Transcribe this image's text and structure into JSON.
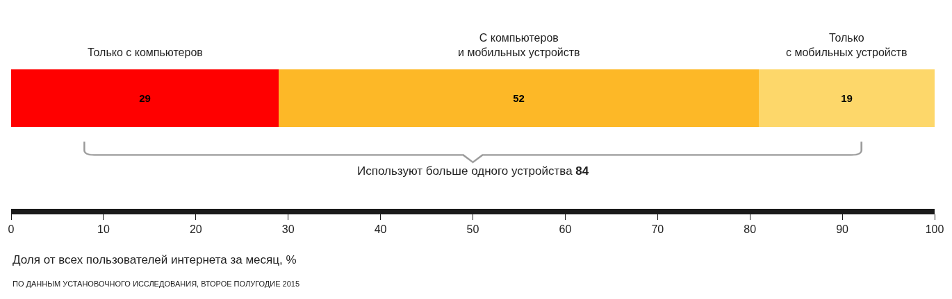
{
  "chart_data": {
    "type": "bar",
    "orientation": "horizontal",
    "stacked": true,
    "categories": [
      null
    ],
    "series": [
      {
        "name": "Только с компьютеров",
        "color": "#ff0000",
        "values": [
          29
        ]
      },
      {
        "name": "С компьютеров\nи мобильных устройств",
        "color": "#fdb827",
        "values": [
          52
        ]
      },
      {
        "name": "Только\nс мобильных устройств",
        "color": "#fdd76a",
        "values": [
          19
        ]
      }
    ],
    "data_labels": true,
    "xlim": [
      0,
      100
    ],
    "xticks": [
      0,
      10,
      20,
      30,
      40,
      50,
      60,
      70,
      80,
      90,
      100
    ],
    "xlabel": "Доля от всех пользователей интернета за месяц, %",
    "annotations": [
      "Используют больше одного устройства 84",
      "ПО ДАННЫМ УСТАНОВОЧНОГО ИССЛЕДОВАНИЯ, ВТОРОЕ ПОЛУГОДИЕ 2015"
    ],
    "legend": false
  }
}
